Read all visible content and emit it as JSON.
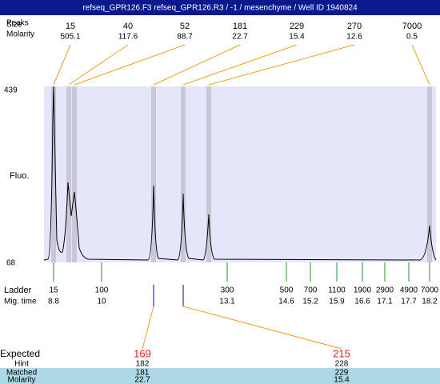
{
  "header": {
    "title": "refseq_GPR126.F3  refseq_GPR126.R3 / -1 / mesenchyme / Well ID 1940824"
  },
  "peaks": {
    "label_overlap": [
      "Peaks",
      "Size"
    ],
    "molarity_label": "Molarity",
    "size": [
      "15",
      "40",
      "52",
      "181",
      "229",
      "270",
      "7000"
    ],
    "molarity": [
      "505.1",
      "117.6",
      "88.7",
      "22.7",
      "15.4",
      "12.6",
      "0.5"
    ]
  },
  "axis": {
    "top": "439",
    "bottom": "68",
    "label": "Fluo."
  },
  "ladder": {
    "label": "Ladder",
    "time_label": "Mig. time",
    "size": [
      "15",
      "100",
      "300",
      "500",
      "700",
      "1100",
      "1900",
      "2900",
      "4900",
      "7000"
    ],
    "time": [
      "8.8",
      "10",
      "13.1",
      "14.6",
      "15.2",
      "15.9",
      "16.6",
      "17.1",
      "17.7",
      "18.2"
    ]
  },
  "expected": {
    "labels": [
      "Expected",
      "Hint",
      "Matched",
      "Molarity"
    ],
    "columns": [
      [
        "169",
        "182",
        "181",
        "22.7"
      ],
      [
        "215",
        "228",
        "229",
        "15.4"
      ]
    ]
  }
}
